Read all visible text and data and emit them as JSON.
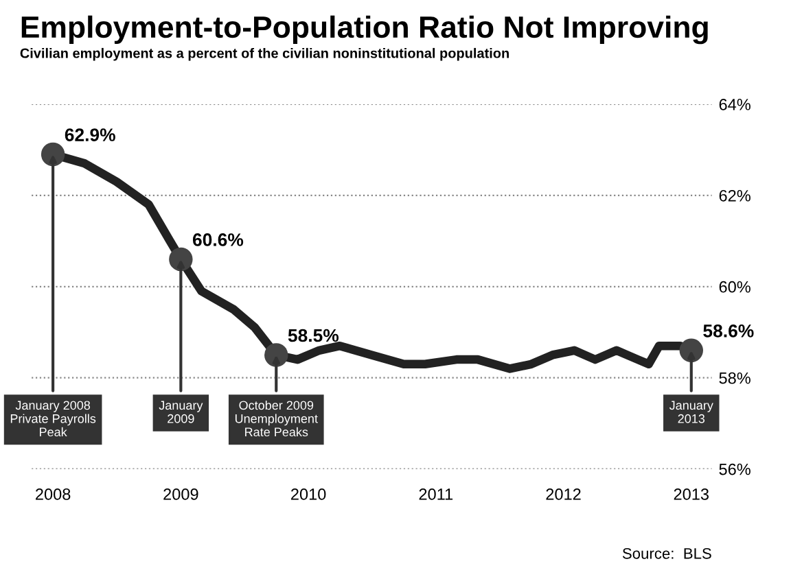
{
  "chart_data": {
    "type": "line",
    "title": "Employment-to-Population Ratio Not Improving",
    "subtitle": "Civilian employment as a percent of the civilian noninstitutional population",
    "series": [
      {
        "type": "line",
        "color": "#222222",
        "x": [
          "2008-01",
          "2008-04",
          "2008-07",
          "2008-10",
          "2008-12",
          "2009-01",
          "2009-03",
          "2009-06",
          "2009-08",
          "2009-10",
          "2009-12",
          "2010-02",
          "2010-04",
          "2010-07",
          "2010-10",
          "2010-12",
          "2011-03",
          "2011-05",
          "2011-08",
          "2011-10",
          "2011-12",
          "2012-02",
          "2012-04",
          "2012-06",
          "2012-08",
          "2012-09",
          "2012-10",
          "2012-12",
          "2013-01"
        ],
        "values": [
          62.9,
          62.7,
          62.3,
          61.8,
          61.0,
          60.6,
          59.9,
          59.5,
          59.1,
          58.5,
          58.4,
          58.6,
          58.7,
          58.5,
          58.3,
          58.3,
          58.4,
          58.4,
          58.2,
          58.3,
          58.5,
          58.6,
          58.4,
          58.6,
          58.4,
          58.3,
          58.7,
          58.7,
          58.6
        ]
      },
      {
        "type": "scatter",
        "color": "#444444",
        "marker": "circle",
        "x": [
          "2008-01",
          "2009-01",
          "2009-10",
          "2013-01"
        ],
        "values": [
          62.9,
          60.6,
          58.5,
          58.6
        ],
        "value_labels": [
          "62.9%",
          "60.6%",
          "58.5%",
          "58.6%"
        ]
      }
    ],
    "xlim": [
      "2007-11",
      "2013-03"
    ],
    "xticks": [
      {
        "value": "2008",
        "label": "2008"
      },
      {
        "value": "2009",
        "label": "2009"
      },
      {
        "value": "2010",
        "label": "2010"
      },
      {
        "value": "2011",
        "label": "2011"
      },
      {
        "value": "2012",
        "label": "2012"
      },
      {
        "value": "2013",
        "label": "2013"
      }
    ],
    "ylim": [
      56,
      64
    ],
    "yticks": [
      {
        "value": 56,
        "label": "56%"
      },
      {
        "value": 58,
        "label": "58%"
      },
      {
        "value": 60,
        "label": "60%"
      },
      {
        "value": 62,
        "label": "62%"
      },
      {
        "value": 64,
        "label": "64%"
      }
    ],
    "grid": "y",
    "annotations": [
      {
        "text": "January 2008\nPrivate Payrolls\nPeak",
        "x": "2008-01",
        "y": 62.9
      },
      {
        "text": "January\n2009",
        "x": "2009-01",
        "y": 60.6
      },
      {
        "text": "October 2009\nUnemployment\nRate Peaks",
        "x": "2009-10",
        "y": 58.5
      },
      {
        "text": "January\n2013",
        "x": "2013-01",
        "y": 58.6
      },
      "Source:  BLS"
    ]
  }
}
